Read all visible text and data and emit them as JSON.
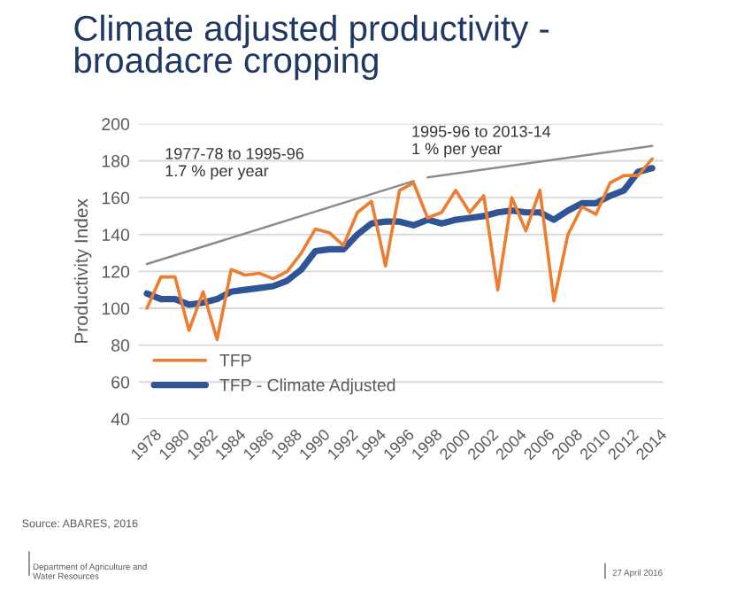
{
  "chart_data": {
    "type": "line",
    "title": "Climate adjusted productivity -\nbroadacre cropping",
    "ylabel": "Productivity Index",
    "xlim": [
      1977.4,
      2014.8
    ],
    "xticks": [
      1978,
      1980,
      1982,
      1984,
      1986,
      1988,
      1990,
      1992,
      1994,
      1996,
      1998,
      2000,
      2002,
      2004,
      2006,
      2008,
      2010,
      2012,
      2014
    ],
    "ylim": [
      40,
      200
    ],
    "yticks": [
      40,
      60,
      80,
      100,
      120,
      140,
      160,
      180,
      200
    ],
    "grid": "y",
    "legend": "bottom left",
    "marker": "none",
    "line_style": "solid",
    "x": [
      1978,
      1979,
      1980,
      1981,
      1982,
      1983,
      1984,
      1985,
      1986,
      1987,
      1988,
      1989,
      1990,
      1991,
      1992,
      1993,
      1994,
      1995,
      1996,
      1997,
      1998,
      1999,
      2000,
      2001,
      2002,
      2003,
      2004,
      2005,
      2006,
      2007,
      2008,
      2009,
      2010,
      2011,
      2012,
      2013,
      2014
    ],
    "series": [
      {
        "name": "TFP",
        "color": "#ed7d31",
        "values": [
          100,
          117,
          117,
          88,
          109,
          83,
          121,
          118,
          119,
          116,
          120,
          130,
          143,
          141,
          134,
          152,
          158,
          123,
          164,
          168,
          149,
          152,
          164,
          152,
          161,
          110,
          160,
          142,
          164,
          104,
          140,
          155,
          151,
          168,
          172,
          172,
          181
        ]
      },
      {
        "name": "TFP - Climate Adjusted",
        "color": "#2f5597",
        "values": [
          108,
          105,
          105,
          102,
          103,
          105,
          109,
          110,
          111,
          112,
          115,
          121,
          131,
          132,
          132,
          140,
          146,
          147,
          147,
          145,
          148,
          146,
          148,
          149,
          150,
          152,
          153,
          152,
          152,
          148,
          153,
          157,
          157,
          161,
          164,
          174,
          176
        ]
      },
      {
        "type": "line",
        "color": "#8c8c8c",
        "x": [
          1978,
          1997
        ],
        "values": [
          124,
          169
        ]
      },
      {
        "type": "line",
        "color": "#8c8c8c",
        "x": [
          1998,
          2014
        ],
        "values": [
          171,
          188
        ]
      }
    ],
    "annotations": [
      "1977-78 to 1995-96\n1.7 % per year",
      "1995-96 to 2013-14\n1 % per year",
      "Source: ABARES, 2016",
      "Department of Agriculture and\nWater Resources",
      "27 April 2016"
    ]
  }
}
